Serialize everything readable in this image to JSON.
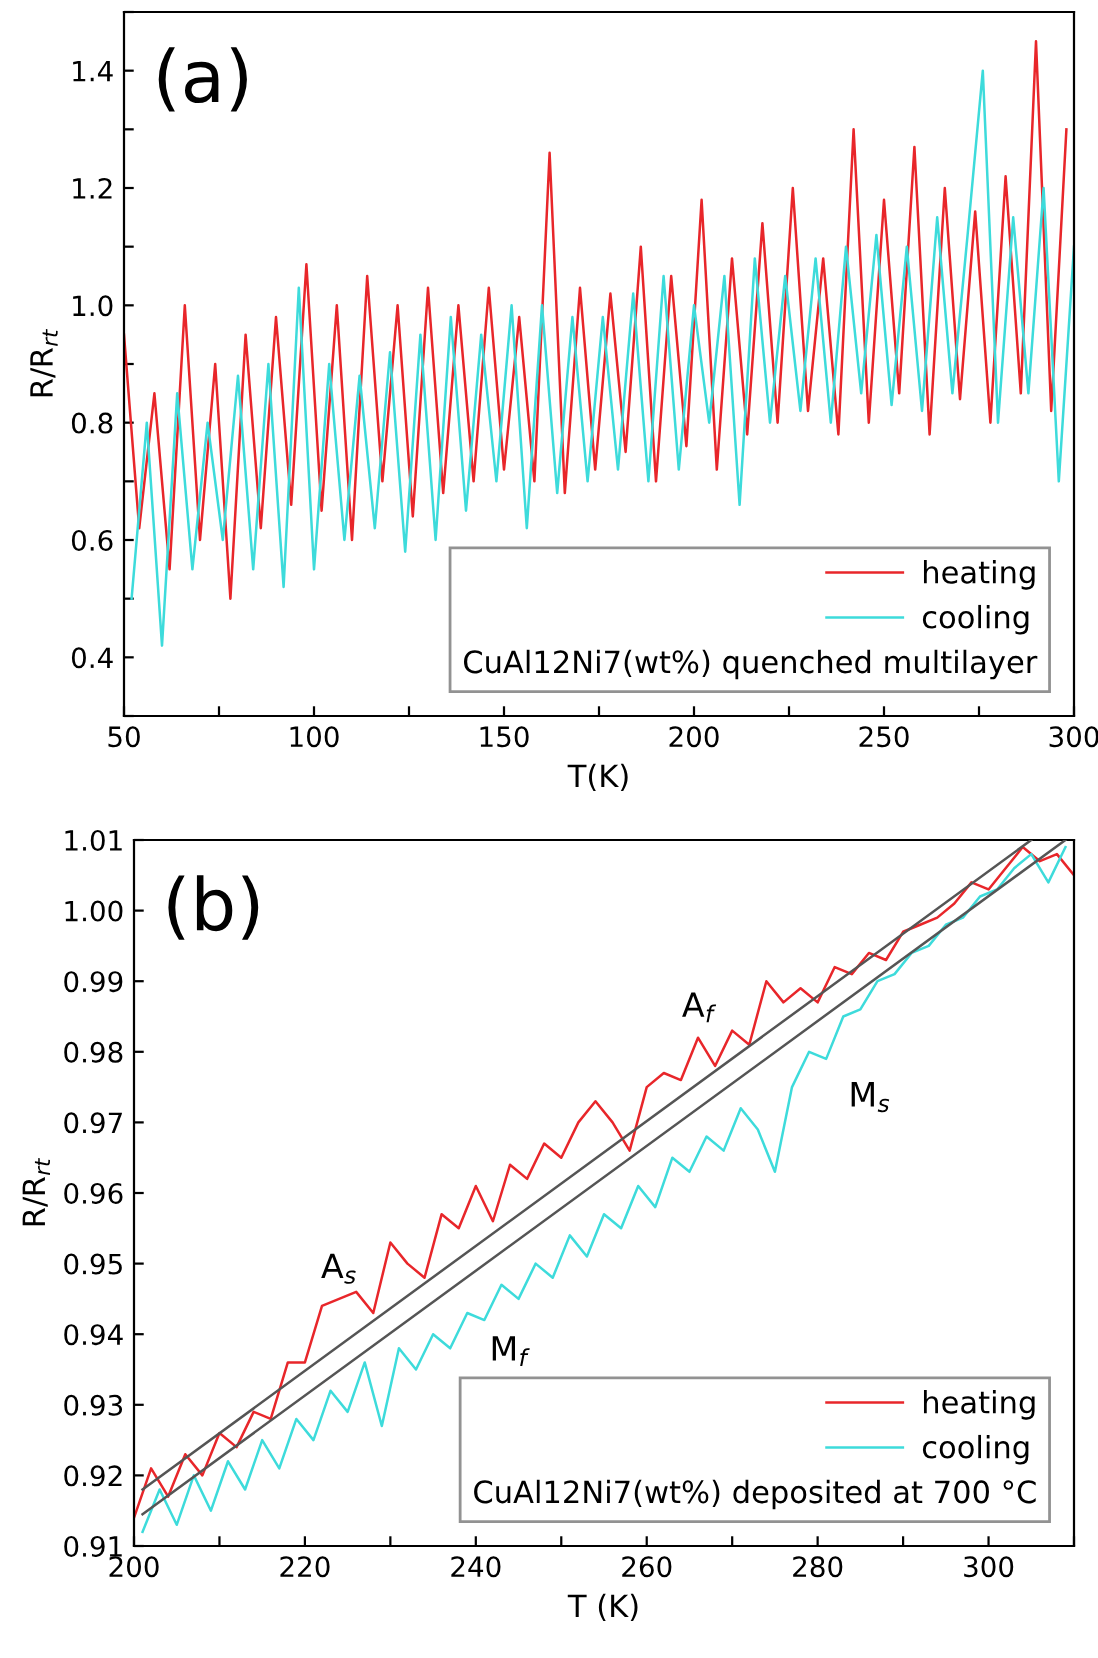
{
  "chart_data": [
    {
      "type": "line",
      "xlabel": "T(K)",
      "ylabel": "R/R$_{rt}$",
      "legend_title": "CuAl12Ni7(wt%) quenched multilayer",
      "annotations": [
        "(a)"
      ],
      "xlim": [
        50,
        300
      ],
      "xticks": [
        50,
        {
          "value": 75,
          "label": null
        },
        100,
        {
          "value": 125,
          "label": null
        },
        150,
        {
          "value": 175,
          "label": null
        },
        200,
        {
          "value": 225,
          "label": null
        },
        250,
        {
          "value": 275,
          "label": null
        },
        300
      ],
      "ylim": [
        0.3,
        1.5
      ],
      "yticks": [
        {
          "value": 0.3,
          "label": null
        },
        0.4,
        {
          "value": 0.5,
          "label": null
        },
        0.6,
        {
          "value": 0.7,
          "label": null
        },
        0.8,
        {
          "value": 0.9,
          "label": null
        },
        {
          "value": 1.0,
          "label": "1.0"
        },
        {
          "value": 1.1,
          "label": null
        },
        1.2,
        {
          "value": 1.3,
          "label": null
        },
        1.4,
        {
          "value": 1.5,
          "label": null
        }
      ],
      "grid": false,
      "legend": "bottom right",
      "marker": "none",
      "line_style": "solid",
      "series": [
        {
          "name": "heating",
          "color": "#e8262a",
          "x": [
            50,
            54,
            58,
            62,
            66,
            70,
            74,
            78,
            82,
            86,
            90,
            94,
            98,
            102,
            106,
            110,
            114,
            118,
            122,
            126,
            130,
            134,
            138,
            142,
            146,
            150,
            154,
            158,
            162,
            166,
            170,
            174,
            178,
            182,
            186,
            190,
            194,
            198,
            202,
            206,
            210,
            214,
            218,
            222,
            226,
            230,
            234,
            238,
            242,
            246,
            250,
            254,
            258,
            262,
            266,
            270,
            274,
            278,
            282,
            286,
            290,
            294,
            298
          ],
          "values": [
            0.95,
            0.62,
            0.85,
            0.55,
            1.0,
            0.6,
            0.9,
            0.5,
            0.95,
            0.62,
            0.98,
            0.66,
            1.07,
            0.65,
            1.0,
            0.6,
            1.05,
            0.7,
            1.0,
            0.64,
            1.03,
            0.68,
            1.0,
            0.7,
            1.03,
            0.72,
            0.98,
            0.7,
            1.26,
            0.68,
            1.03,
            0.72,
            1.02,
            0.75,
            1.1,
            0.7,
            1.05,
            0.76,
            1.18,
            0.72,
            1.08,
            0.78,
            1.14,
            0.8,
            1.2,
            0.82,
            1.08,
            0.78,
            1.3,
            0.8,
            1.18,
            0.85,
            1.27,
            0.78,
            1.2,
            0.84,
            1.16,
            0.8,
            1.22,
            0.85,
            1.45,
            0.82,
            1.3
          ]
        },
        {
          "name": "cooling",
          "color": "#3ddbdb",
          "x": [
            52,
            56,
            60,
            64,
            68,
            72,
            76,
            80,
            84,
            88,
            92,
            96,
            100,
            104,
            108,
            112,
            116,
            120,
            124,
            128,
            132,
            136,
            140,
            144,
            148,
            152,
            156,
            160,
            164,
            168,
            172,
            176,
            180,
            184,
            188,
            192,
            196,
            200,
            204,
            208,
            212,
            216,
            220,
            224,
            228,
            232,
            236,
            240,
            244,
            248,
            252,
            256,
            260,
            264,
            268,
            272,
            276,
            280,
            284,
            288,
            292,
            296,
            300
          ],
          "values": [
            0.5,
            0.8,
            0.42,
            0.85,
            0.55,
            0.8,
            0.6,
            0.88,
            0.55,
            0.9,
            0.52,
            1.03,
            0.55,
            0.9,
            0.6,
            0.88,
            0.62,
            0.92,
            0.58,
            0.95,
            0.6,
            0.98,
            0.65,
            0.95,
            0.7,
            1.0,
            0.62,
            1.0,
            0.68,
            0.98,
            0.7,
            0.98,
            0.72,
            1.02,
            0.7,
            1.05,
            0.72,
            1.0,
            0.8,
            1.05,
            0.66,
            1.08,
            0.8,
            1.05,
            0.82,
            1.08,
            0.8,
            1.1,
            0.85,
            1.12,
            0.83,
            1.1,
            0.82,
            1.15,
            0.85,
            1.12,
            1.4,
            0.8,
            1.15,
            0.85,
            1.2,
            0.7,
            1.1
          ]
        }
      ]
    },
    {
      "type": "line",
      "xlabel": "T (K)",
      "ylabel": "R/R$_{rt}$",
      "legend_title": "CuAl12Ni7(wt%) deposited at 700 °C",
      "annotations": [
        "(b)",
        {
          "text": "A$_{s}$",
          "x": 224,
          "y": 0.945
        },
        {
          "text": "A$_{f}$",
          "x": 266,
          "y": 0.982
        },
        {
          "text": "M$_{s}$",
          "x": 281,
          "y": 0.979
        },
        {
          "text": "M$_{f}$",
          "x": 239,
          "y": 0.943
        }
      ],
      "xlim": [
        200,
        310
      ],
      "xticks": [
        200,
        {
          "value": 210,
          "label": null
        },
        220,
        {
          "value": 230,
          "label": null
        },
        240,
        {
          "value": 250,
          "label": null
        },
        260,
        {
          "value": 270,
          "label": null
        },
        280,
        {
          "value": 290,
          "label": null
        },
        300,
        {
          "value": 310,
          "label": null
        }
      ],
      "ylim": [
        0.91,
        1.01
      ],
      "yticks": [
        0.91,
        0.92,
        0.93,
        0.94,
        0.95,
        0.96,
        0.97,
        0.98,
        0.99,
        {
          "value": 1.0,
          "label": "1.00"
        },
        1.01
      ],
      "grid": false,
      "legend": "bottom right",
      "marker": "none",
      "line_style": "solid",
      "series": [
        {
          "name": "heating",
          "color": "#e8262a",
          "x": [
            200,
            202,
            204,
            206,
            208,
            210,
            212,
            214,
            216,
            218,
            220,
            222,
            224,
            226,
            228,
            230,
            232,
            234,
            236,
            238,
            240,
            242,
            244,
            246,
            248,
            250,
            252,
            254,
            256,
            258,
            260,
            262,
            264,
            266,
            268,
            270,
            272,
            274,
            276,
            278,
            280,
            282,
            284,
            286,
            288,
            290,
            292,
            294,
            296,
            298,
            300,
            302,
            304,
            306,
            308,
            310
          ],
          "values": [
            0.914,
            0.921,
            0.917,
            0.923,
            0.92,
            0.926,
            0.924,
            0.929,
            0.928,
            0.936,
            0.936,
            0.944,
            0.945,
            0.946,
            0.943,
            0.953,
            0.95,
            0.948,
            0.957,
            0.955,
            0.961,
            0.956,
            0.964,
            0.962,
            0.967,
            0.965,
            0.97,
            0.973,
            0.97,
            0.966,
            0.975,
            0.977,
            0.976,
            0.982,
            0.978,
            0.983,
            0.981,
            0.99,
            0.987,
            0.989,
            0.987,
            0.992,
            0.991,
            0.994,
            0.993,
            0.997,
            0.998,
            0.999,
            1.001,
            1.004,
            1.003,
            1.006,
            1.009,
            1.007,
            1.008,
            1.005
          ]
        },
        {
          "name": "cooling",
          "color": "#3ddbdb",
          "x": [
            201,
            203,
            205,
            207,
            209,
            211,
            213,
            215,
            217,
            219,
            221,
            223,
            225,
            227,
            229,
            231,
            233,
            235,
            237,
            239,
            241,
            243,
            245,
            247,
            249,
            251,
            253,
            255,
            257,
            259,
            261,
            263,
            265,
            267,
            269,
            271,
            273,
            275,
            277,
            279,
            281,
            283,
            285,
            287,
            289,
            291,
            293,
            295,
            297,
            299,
            301,
            303,
            305,
            307,
            309
          ],
          "values": [
            0.912,
            0.918,
            0.913,
            0.92,
            0.915,
            0.922,
            0.918,
            0.925,
            0.921,
            0.928,
            0.925,
            0.932,
            0.929,
            0.936,
            0.927,
            0.938,
            0.935,
            0.94,
            0.938,
            0.943,
            0.942,
            0.947,
            0.945,
            0.95,
            0.948,
            0.954,
            0.951,
            0.957,
            0.955,
            0.961,
            0.958,
            0.965,
            0.963,
            0.968,
            0.966,
            0.972,
            0.969,
            0.963,
            0.975,
            0.98,
            0.979,
            0.985,
            0.986,
            0.99,
            0.991,
            0.994,
            0.995,
            0.998,
            0.999,
            1.002,
            1.003,
            1.006,
            1.008,
            1.004,
            1.009
          ]
        },
        {
          "color": "#555555",
          "x": [
            201,
            305
          ],
          "values": [
            0.918,
            1.01
          ]
        },
        {
          "color": "#555555",
          "x": [
            201,
            309
          ],
          "values": [
            0.9145,
            1.01
          ]
        }
      ]
    }
  ]
}
